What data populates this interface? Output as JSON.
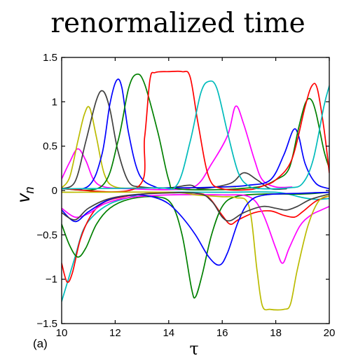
{
  "chart_data": {
    "type": "line",
    "title": "renormalized time",
    "xlabel": "τ",
    "ylabel": "v",
    "ylabel_subscript": "n",
    "panel_label": "(a)",
    "xlim": [
      10,
      20
    ],
    "ylim": [
      -1.5,
      1.5
    ],
    "xticks": [
      10,
      12,
      14,
      16,
      18,
      20
    ],
    "yticks": [
      1.5,
      1,
      0.5,
      0,
      -0.5,
      -1,
      -1.5
    ],
    "ytick_labels": [
      "1.5",
      "1",
      "0.5",
      "0",
      "−0.5",
      "−1",
      "−1.5"
    ],
    "grid": false,
    "legend": "none",
    "series": [
      {
        "color": "#ff00ff",
        "points": [
          [
            10,
            0.13
          ],
          [
            10.3,
            0.32
          ],
          [
            10.6,
            0.47
          ],
          [
            10.9,
            0.34
          ],
          [
            11.2,
            0.12
          ],
          [
            11.6,
            0.04
          ],
          [
            12.5,
            0.02
          ],
          [
            14,
            0.01
          ],
          [
            15,
            0.05
          ],
          [
            15.6,
            0.3
          ],
          [
            16.2,
            0.62
          ],
          [
            16.5,
            0.95
          ],
          [
            16.8,
            0.75
          ],
          [
            17.2,
            0.35
          ],
          [
            17.5,
            0.12
          ],
          [
            18,
            0.04
          ],
          [
            18.6,
            0.04
          ]
        ]
      },
      {
        "color": "#bbbb00",
        "points": [
          [
            10,
            0.03
          ],
          [
            10.3,
            0.15
          ],
          [
            10.6,
            0.55
          ],
          [
            10.85,
            0.86
          ],
          [
            11.05,
            0.93
          ],
          [
            11.3,
            0.6
          ],
          [
            11.6,
            0.18
          ],
          [
            12,
            0.04
          ],
          [
            13,
            0.03
          ],
          [
            14,
            0.03
          ],
          [
            15,
            0.03
          ],
          [
            16,
            0.04
          ],
          [
            16.5,
            0.04
          ]
        ]
      },
      {
        "color": "#404040",
        "points": [
          [
            10,
            0.02
          ],
          [
            10.5,
            0.1
          ],
          [
            10.9,
            0.55
          ],
          [
            11.3,
            1.02
          ],
          [
            11.55,
            1.12
          ],
          [
            11.8,
            0.92
          ],
          [
            12.1,
            0.45
          ],
          [
            12.5,
            0.1
          ],
          [
            13,
            0.04
          ],
          [
            14,
            0.03
          ],
          [
            14.8,
            0.06
          ],
          [
            15.2,
            0.02
          ],
          [
            16.3,
            0.08
          ],
          [
            16.8,
            0.2
          ],
          [
            17.3,
            0.12
          ],
          [
            17.8,
            0.02
          ],
          [
            18.4,
            0.02
          ]
        ]
      },
      {
        "color": "#0000ff",
        "points": [
          [
            10,
            0.02
          ],
          [
            11,
            0.05
          ],
          [
            11.5,
            0.4
          ],
          [
            11.8,
            0.97
          ],
          [
            12.05,
            1.24
          ],
          [
            12.25,
            1.16
          ],
          [
            12.5,
            0.65
          ],
          [
            12.9,
            0.18
          ],
          [
            13.5,
            0.04
          ],
          [
            14,
            0.03
          ],
          [
            16,
            0.04
          ],
          [
            17,
            0.06
          ],
          [
            17.8,
            0.12
          ],
          [
            18.3,
            0.4
          ],
          [
            18.65,
            0.68
          ],
          [
            18.85,
            0.62
          ],
          [
            19.1,
            0.3
          ],
          [
            19.5,
            0.08
          ],
          [
            20,
            0.02
          ]
        ]
      },
      {
        "color": "#008000",
        "points": [
          [
            10,
            0.02
          ],
          [
            11.5,
            0.05
          ],
          [
            12.1,
            0.55
          ],
          [
            12.5,
            1.15
          ],
          [
            12.8,
            1.31
          ],
          [
            13.1,
            1.2
          ],
          [
            13.6,
            0.65
          ],
          [
            14,
            0.12
          ],
          [
            14.3,
            0.02
          ],
          [
            16,
            0.01
          ],
          [
            17,
            0.03
          ],
          [
            17.5,
            0.05
          ],
          [
            18,
            0.12
          ],
          [
            18.5,
            0.25
          ],
          [
            18.85,
            0.7
          ],
          [
            19.1,
            0.98
          ],
          [
            19.3,
            1.03
          ],
          [
            19.5,
            0.88
          ],
          [
            19.8,
            0.45
          ],
          [
            20,
            0.25
          ]
        ]
      },
      {
        "color": "#ff0000",
        "points": [
          [
            10,
            0.02
          ],
          [
            12.8,
            0.03
          ],
          [
            13.1,
            0.6
          ],
          [
            13.3,
            1.25
          ],
          [
            13.5,
            1.33
          ],
          [
            14,
            1.34
          ],
          [
            14.5,
            1.34
          ],
          [
            14.8,
            1.28
          ],
          [
            15.1,
            0.75
          ],
          [
            15.5,
            0.15
          ],
          [
            16,
            0.02
          ],
          [
            17,
            0.01
          ],
          [
            17.5,
            0.05
          ],
          [
            18,
            0.12
          ],
          [
            18.6,
            0.35
          ],
          [
            19.1,
            0.95
          ],
          [
            19.35,
            1.18
          ],
          [
            19.55,
            1.15
          ],
          [
            19.8,
            0.7
          ],
          [
            20,
            0.2
          ]
        ]
      },
      {
        "color": "#00bbbb",
        "points": [
          [
            10,
            0.02
          ],
          [
            13.5,
            0.03
          ],
          [
            14.3,
            0.06
          ],
          [
            14.8,
            0.55
          ],
          [
            15.2,
            1.1
          ],
          [
            15.5,
            1.23
          ],
          [
            15.8,
            1.15
          ],
          [
            16.2,
            0.65
          ],
          [
            16.6,
            0.2
          ],
          [
            17,
            0.05
          ],
          [
            17.5,
            0.02
          ],
          [
            18.5,
            0.03
          ],
          [
            19,
            0.08
          ],
          [
            19.4,
            0.35
          ],
          [
            19.8,
            0.95
          ],
          [
            20,
            1.18
          ]
        ]
      },
      {
        "color": "#00bbbb",
        "points": [
          [
            10,
            -1.25
          ],
          [
            10.2,
            -1.05
          ],
          [
            10.5,
            -0.75
          ],
          [
            10.8,
            -0.45
          ],
          [
            11.2,
            -0.28
          ],
          [
            11.8,
            -0.15
          ],
          [
            12.5,
            -0.08
          ],
          [
            13,
            -0.04
          ],
          [
            14,
            -0.02
          ],
          [
            16,
            -0.02
          ],
          [
            18,
            -0.02
          ],
          [
            19,
            -0.08
          ],
          [
            19.5,
            -0.1
          ],
          [
            20,
            -0.09
          ]
        ]
      },
      {
        "color": "#ff0000",
        "points": [
          [
            10,
            -0.82
          ],
          [
            10.2,
            -1.03
          ],
          [
            10.4,
            -0.93
          ],
          [
            10.7,
            -0.55
          ],
          [
            11.1,
            -0.28
          ],
          [
            11.6,
            -0.13
          ],
          [
            12.5,
            -0.06
          ],
          [
            13.5,
            -0.03
          ],
          [
            15,
            -0.03
          ],
          [
            15.5,
            -0.08
          ],
          [
            16,
            -0.28
          ],
          [
            16.3,
            -0.38
          ],
          [
            16.6,
            -0.33
          ],
          [
            17.2,
            -0.25
          ],
          [
            17.8,
            -0.23
          ],
          [
            18.3,
            -0.28
          ],
          [
            18.7,
            -0.3
          ],
          [
            19,
            -0.24
          ],
          [
            19.5,
            -0.12
          ],
          [
            20,
            -0.06
          ]
        ]
      },
      {
        "color": "#008000",
        "points": [
          [
            10,
            -0.38
          ],
          [
            10.3,
            -0.62
          ],
          [
            10.6,
            -0.75
          ],
          [
            10.9,
            -0.65
          ],
          [
            11.3,
            -0.38
          ],
          [
            11.8,
            -0.2
          ],
          [
            12.5,
            -0.1
          ],
          [
            13.5,
            -0.07
          ],
          [
            14.1,
            -0.15
          ],
          [
            14.5,
            -0.5
          ],
          [
            14.85,
            -1.1
          ],
          [
            15.0,
            -1.2
          ],
          [
            15.25,
            -0.95
          ],
          [
            15.6,
            -0.5
          ],
          [
            16,
            -0.18
          ],
          [
            16.5,
            -0.07
          ],
          [
            17.5,
            -0.04
          ],
          [
            19,
            -0.04
          ],
          [
            20,
            -0.02
          ]
        ]
      },
      {
        "color": "#ff00ff",
        "points": [
          [
            10,
            -0.2
          ],
          [
            10.5,
            -0.3
          ],
          [
            11,
            -0.26
          ],
          [
            11.6,
            -0.15
          ],
          [
            12.5,
            -0.08
          ],
          [
            14,
            -0.05
          ],
          [
            16,
            -0.05
          ],
          [
            17,
            -0.07
          ],
          [
            17.5,
            -0.25
          ],
          [
            18.0,
            -0.65
          ],
          [
            18.25,
            -0.82
          ],
          [
            18.5,
            -0.65
          ],
          [
            18.9,
            -0.4
          ],
          [
            19.3,
            -0.28
          ],
          [
            19.7,
            -0.22
          ],
          [
            20,
            -0.18
          ]
        ]
      },
      {
        "color": "#bbbb00",
        "points": [
          [
            10,
            -0.02
          ],
          [
            14,
            -0.02
          ],
          [
            15,
            -0.05
          ],
          [
            15.5,
            -0.06
          ],
          [
            16,
            -0.07
          ],
          [
            16.5,
            -0.08
          ],
          [
            17,
            -0.18
          ],
          [
            17.3,
            -0.9
          ],
          [
            17.5,
            -1.3
          ],
          [
            17.8,
            -1.34
          ],
          [
            18.3,
            -1.34
          ],
          [
            18.55,
            -1.28
          ],
          [
            18.8,
            -0.9
          ],
          [
            19.2,
            -0.4
          ],
          [
            19.6,
            -0.12
          ],
          [
            20,
            -0.06
          ]
        ]
      },
      {
        "color": "#0000ff",
        "points": [
          [
            10,
            -0.22
          ],
          [
            10.5,
            -0.35
          ],
          [
            11,
            -0.24
          ],
          [
            11.8,
            -0.1
          ],
          [
            12.8,
            -0.05
          ],
          [
            13.5,
            -0.08
          ],
          [
            14,
            -0.15
          ],
          [
            14.5,
            -0.3
          ],
          [
            15,
            -0.5
          ],
          [
            15.5,
            -0.75
          ],
          [
            15.9,
            -0.84
          ],
          [
            16.2,
            -0.7
          ],
          [
            16.6,
            -0.35
          ],
          [
            17,
            -0.13
          ],
          [
            17.6,
            -0.05
          ],
          [
            19,
            -0.03
          ],
          [
            20,
            -0.02
          ]
        ]
      },
      {
        "color": "#404040",
        "points": [
          [
            10,
            -0.25
          ],
          [
            10.5,
            -0.33
          ],
          [
            11,
            -0.2
          ],
          [
            11.8,
            -0.09
          ],
          [
            13,
            -0.04
          ],
          [
            15,
            -0.03
          ],
          [
            15.6,
            -0.12
          ],
          [
            16,
            -0.3
          ],
          [
            16.3,
            -0.34
          ],
          [
            16.8,
            -0.25
          ],
          [
            17.5,
            -0.18
          ],
          [
            18,
            -0.2
          ],
          [
            18.4,
            -0.22
          ],
          [
            18.8,
            -0.18
          ],
          [
            19.3,
            -0.1
          ],
          [
            20,
            -0.04
          ]
        ]
      }
    ]
  }
}
